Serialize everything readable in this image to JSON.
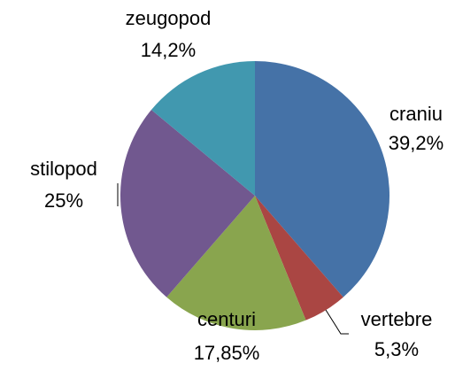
{
  "chart_data": {
    "type": "pie",
    "categories": [
      "craniu",
      "vertebre",
      "centuri",
      "stilopod",
      "zeugopod"
    ],
    "values": [
      39.2,
      5.3,
      17.85,
      25,
      14.2
    ],
    "value_labels": [
      "39,2%",
      "5,3%",
      "17,85%",
      "25%",
      "14,2%"
    ],
    "colors": [
      "#4572a7",
      "#aa4643",
      "#89a54e",
      "#71588f",
      "#4198af"
    ]
  }
}
